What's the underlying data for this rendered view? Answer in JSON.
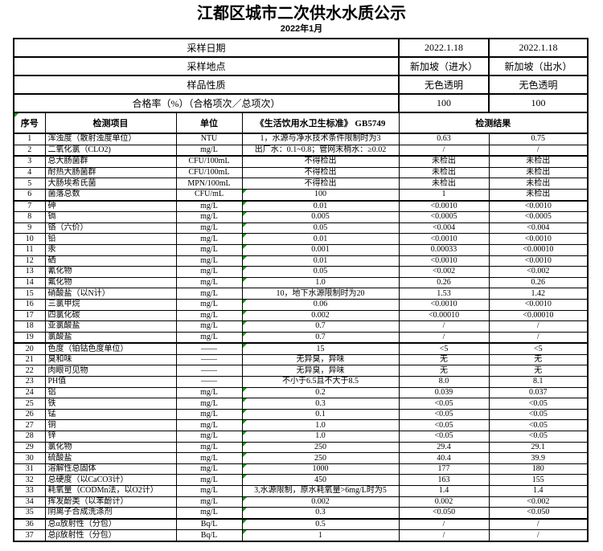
{
  "title": "江都区城市二次供水水质公示",
  "subtitle": "2022年1月",
  "colors": {
    "border": "#000000",
    "flag_green": "#0f9d0f"
  },
  "info_rows": [
    {
      "label": "采样日期",
      "v1": "2022.1.18",
      "v2": "2022.1.18"
    },
    {
      "label": "采样地点",
      "v1": "新加坡（进水）",
      "v2": "新加坡（出水）"
    },
    {
      "label": "样品性质",
      "v1": "无色透明",
      "v2": "无色透明"
    },
    {
      "label": "合格率（%）（合格项次／总项次）",
      "v1": "100",
      "v2": "100"
    }
  ],
  "table": {
    "headers": {
      "no": "序号",
      "item": "检测项目",
      "unit": "单位",
      "standard": "《生活饮用水卫生标准》 GB5749",
      "result": "检测结果"
    },
    "rows": [
      {
        "no": "1",
        "item": "浑浊度（散射浊度单位）",
        "unit": "NTU",
        "standard": "1，水源与净水技术条件限制时为3",
        "r1": "0.63",
        "r2": "0.75",
        "flag": false
      },
      {
        "no": "2",
        "item": "二氧化氯（CLO2)",
        "unit": "mg/L",
        "standard": "出厂水：0.1~0.8；管网末梢水：≥0.02",
        "r1": "/",
        "r2": "/",
        "flag": false
      },
      {
        "no": "3",
        "item": "总大肠菌群",
        "unit": "CFU/100mL",
        "standard": "不得检出",
        "r1": "未检出",
        "r2": "未检出",
        "flag": false
      },
      {
        "no": "4",
        "item": "耐热大肠菌群",
        "unit": "CFU/100mL",
        "standard": "不得检出",
        "r1": "未检出",
        "r2": "未检出",
        "flag": false
      },
      {
        "no": "5",
        "item": "大肠埃希氏菌",
        "unit": "MPN/100mL",
        "standard": "不得检出",
        "r1": "未检出",
        "r2": "未检出",
        "flag": false
      },
      {
        "no": "6",
        "item": "菌落总数",
        "unit": "CFU/mL",
        "standard": "100",
        "r1": "1",
        "r2": "未检出",
        "flag": true
      },
      {
        "no": "7",
        "item": "砷",
        "unit": "mg/L",
        "standard": "0.01",
        "r1": "<0.0010",
        "r2": "<0.0010",
        "flag": true
      },
      {
        "no": "8",
        "item": "镉",
        "unit": "mg/L",
        "standard": "0.005",
        "r1": "<0.0005",
        "r2": "<0.0005",
        "flag": true
      },
      {
        "no": "9",
        "item": "铬（六价）",
        "unit": "mg/L",
        "standard": "0.05",
        "r1": "<0.004",
        "r2": "<0.004",
        "flag": true
      },
      {
        "no": "10",
        "item": "铅",
        "unit": "mg/L",
        "standard": "0.01",
        "r1": "<0.0010",
        "r2": "<0.0010",
        "flag": true
      },
      {
        "no": "11",
        "item": "汞",
        "unit": "mg/L",
        "standard": "0.001",
        "r1": "0.00033",
        "r2": "<0.00010",
        "flag": true
      },
      {
        "no": "12",
        "item": "硒",
        "unit": "mg/L",
        "standard": "0.01",
        "r1": "<0.0010",
        "r2": "<0.0010",
        "flag": true
      },
      {
        "no": "13",
        "item": "氰化物",
        "unit": "mg/L",
        "standard": "0.05",
        "r1": "<0.002",
        "r2": "<0.002",
        "flag": true
      },
      {
        "no": "14",
        "item": "氟化物",
        "unit": "mg/L",
        "standard": "1.0",
        "r1": "0.26",
        "r2": "0.26",
        "flag": true
      },
      {
        "no": "15",
        "item": "硝酸盐（以N计）",
        "unit": "mg/L",
        "standard": "10，地下水源限制时为20",
        "r1": "1.53",
        "r2": "1.42",
        "flag": false
      },
      {
        "no": "16",
        "item": "三氯甲烷",
        "unit": "mg/L",
        "standard": "0.06",
        "r1": "<0.0010",
        "r2": "<0.0010",
        "flag": true
      },
      {
        "no": "17",
        "item": "四氯化碳",
        "unit": "mg/L",
        "standard": "0.002",
        "r1": "<0.00010",
        "r2": "<0.00010",
        "flag": true
      },
      {
        "no": "18",
        "item": "亚氯酸盐",
        "unit": "mg/L",
        "standard": "0.7",
        "r1": "/",
        "r2": "/",
        "flag": true
      },
      {
        "no": "19",
        "item": "氯酸盐",
        "unit": "mg/L",
        "standard": "0.7",
        "r1": "/",
        "r2": "/",
        "flag": true
      },
      {
        "no": "20",
        "item": "色度（铂钴色度单位）",
        "unit": "——",
        "standard": "15",
        "r1": "<5",
        "r2": "<5",
        "flag": true
      },
      {
        "no": "21",
        "item": "臭和味",
        "unit": "——",
        "standard": "无异臭，异味",
        "r1": "无",
        "r2": "无",
        "flag": false
      },
      {
        "no": "22",
        "item": "肉眼可见物",
        "unit": "——",
        "standard": "无异臭，异味",
        "r1": "无",
        "r2": "无",
        "flag": false
      },
      {
        "no": "23",
        "item": "PH值",
        "unit": "——",
        "standard": "不小于6.5且不大于8.5",
        "r1": "8.0",
        "r2": "8.1",
        "flag": false
      },
      {
        "no": "24",
        "item": "铝",
        "unit": "mg/L",
        "standard": "0.2",
        "r1": "0.039",
        "r2": "0.037",
        "flag": true
      },
      {
        "no": "25",
        "item": "铁",
        "unit": "mg/L",
        "standard": "0.3",
        "r1": "<0.05",
        "r2": "<0.05",
        "flag": true
      },
      {
        "no": "26",
        "item": "锰",
        "unit": "mg/L",
        "standard": "0.1",
        "r1": "<0.05",
        "r2": "<0.05",
        "flag": true
      },
      {
        "no": "27",
        "item": "铜",
        "unit": "mg/L",
        "standard": "1.0",
        "r1": "<0.05",
        "r2": "<0.05",
        "flag": true
      },
      {
        "no": "28",
        "item": "锌",
        "unit": "mg/L",
        "standard": "1.0",
        "r1": "<0.05",
        "r2": "<0.05",
        "flag": true
      },
      {
        "no": "29",
        "item": "氯化物",
        "unit": "mg/L",
        "standard": "250",
        "r1": "29.4",
        "r2": "29.1",
        "flag": true
      },
      {
        "no": "30",
        "item": "硫酸盐",
        "unit": "mg/L",
        "standard": "250",
        "r1": "40.4",
        "r2": "39.9",
        "flag": true
      },
      {
        "no": "31",
        "item": "溶解性总固体",
        "unit": "mg/L",
        "standard": "1000",
        "r1": "177",
        "r2": "180",
        "flag": true
      },
      {
        "no": "32",
        "item": "总硬度（以CaCO3计）",
        "unit": "mg/L",
        "standard": "450",
        "r1": "163",
        "r2": "155",
        "flag": true
      },
      {
        "no": "33",
        "item": "耗氧量（CODMn法，以O2计）",
        "unit": "mg/L",
        "standard": "3,水源限制，原水耗氧量>6mg/L时为5",
        "r1": "1.4",
        "r2": "1.4",
        "flag": false
      },
      {
        "no": "34",
        "item": "挥发酚类（以苯酚计）",
        "unit": "mg/L",
        "standard": "0.002",
        "r1": "0.002",
        "r2": "<0.002",
        "flag": true
      },
      {
        "no": "35",
        "item": "阴离子合成洗涤剂",
        "unit": "mg/L",
        "standard": "0.3",
        "r1": "<0.050",
        "r2": "<0.050",
        "flag": true
      },
      {
        "no": "36",
        "item": "总α放射性（分包）",
        "unit": "Bq/L",
        "standard": "0.5",
        "r1": "/",
        "r2": "/",
        "flag": true
      },
      {
        "no": "37",
        "item": "总β放射性（分包）",
        "unit": "Bq/L",
        "standard": "1",
        "r1": "/",
        "r2": "/",
        "flag": true
      }
    ]
  }
}
